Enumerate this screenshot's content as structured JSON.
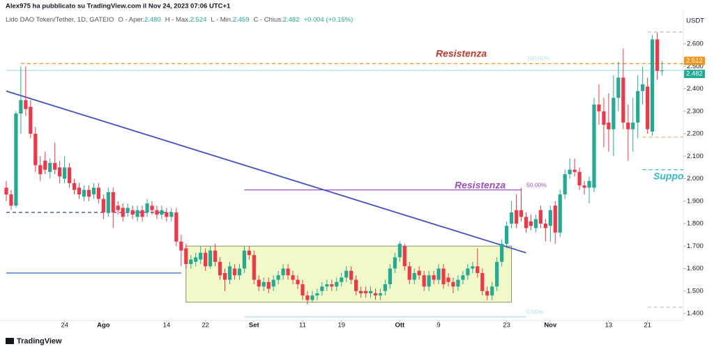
{
  "header": {
    "publisher": "Alex975 ha pubblicato su TradingView.com il Nov 24, 2023 07:06 UTC+1",
    "legend": [
      "Lido DAO Token/Tether, 1D, GATEIO",
      "O - Aper.",
      "2.480",
      "H - Max.",
      "2.524",
      "L - Min.",
      "2.459",
      "C - Chius.",
      "2.482",
      "+0.004 (+0.15%)"
    ]
  },
  "chart_data": {
    "type": "candlestick",
    "currency": "USDT",
    "up_color": "#22ab94",
    "down_color": "#f23645",
    "categories": [
      "2023-07-12",
      "2023-07-13",
      "2023-07-14",
      "2023-07-15",
      "2023-07-16",
      "2023-07-17",
      "2023-07-18",
      "2023-07-19",
      "2023-07-20",
      "2023-07-21",
      "2023-07-22",
      "2023-07-23",
      "2023-07-24",
      "2023-07-25",
      "2023-07-26",
      "2023-07-27",
      "2023-07-28",
      "2023-07-29",
      "2023-07-30",
      "2023-07-31",
      "2023-08-01",
      "2023-08-02",
      "2023-08-03",
      "2023-08-04",
      "2023-08-05",
      "2023-08-06",
      "2023-08-07",
      "2023-08-08",
      "2023-08-09",
      "2023-08-10",
      "2023-08-11",
      "2023-08-12",
      "2023-08-13",
      "2023-08-14",
      "2023-08-15",
      "2023-08-16",
      "2023-08-17",
      "2023-08-18",
      "2023-08-19",
      "2023-08-20",
      "2023-08-21",
      "2023-08-22",
      "2023-08-23",
      "2023-08-24",
      "2023-08-25",
      "2023-08-26",
      "2023-08-27",
      "2023-08-28",
      "2023-08-29",
      "2023-08-30",
      "2023-08-31",
      "2023-09-01",
      "2023-09-02",
      "2023-09-03",
      "2023-09-04",
      "2023-09-05",
      "2023-09-06",
      "2023-09-07",
      "2023-09-08",
      "2023-09-09",
      "2023-09-10",
      "2023-09-11",
      "2023-09-12",
      "2023-09-13",
      "2023-09-14",
      "2023-09-15",
      "2023-09-16",
      "2023-09-17",
      "2023-09-18",
      "2023-09-19",
      "2023-09-20",
      "2023-09-21",
      "2023-09-22",
      "2023-09-23",
      "2023-09-24",
      "2023-09-25",
      "2023-09-26",
      "2023-09-27",
      "2023-09-28",
      "2023-09-29",
      "2023-09-30",
      "2023-10-01",
      "2023-10-02",
      "2023-10-03",
      "2023-10-04",
      "2023-10-05",
      "2023-10-06",
      "2023-10-07",
      "2023-10-08",
      "2023-10-09",
      "2023-10-10",
      "2023-10-11",
      "2023-10-12",
      "2023-10-13",
      "2023-10-14",
      "2023-10-15",
      "2023-10-16",
      "2023-10-17",
      "2023-10-18",
      "2023-10-19",
      "2023-10-20",
      "2023-10-21",
      "2023-10-22",
      "2023-10-23",
      "2023-10-24",
      "2023-10-25",
      "2023-10-26",
      "2023-10-27",
      "2023-10-28",
      "2023-10-29",
      "2023-10-30",
      "2023-10-31",
      "2023-11-01",
      "2023-11-02",
      "2023-11-03",
      "2023-11-04",
      "2023-11-05",
      "2023-11-06",
      "2023-11-07",
      "2023-11-08",
      "2023-11-09",
      "2023-11-10",
      "2023-11-11",
      "2023-11-12",
      "2023-11-13",
      "2023-11-14",
      "2023-11-15",
      "2023-11-16",
      "2023-11-17",
      "2023-11-18",
      "2023-11-19",
      "2023-11-20",
      "2023-11-21",
      "2023-11-22",
      "2023-11-23",
      "2023-11-24"
    ],
    "ohlc": [
      [
        1.96,
        1.99,
        1.9,
        1.93
      ],
      [
        1.93,
        1.95,
        1.86,
        1.88
      ],
      [
        1.88,
        2.3,
        1.87,
        2.29
      ],
      [
        2.29,
        2.5,
        2.2,
        2.35
      ],
      [
        2.35,
        2.5,
        2.28,
        2.31
      ],
      [
        2.32,
        2.35,
        2.18,
        2.2
      ],
      [
        2.2,
        2.23,
        2.03,
        2.06
      ],
      [
        2.06,
        2.1,
        1.99,
        2.02
      ],
      [
        2.08,
        2.12,
        2.02,
        2.04
      ],
      [
        2.03,
        2.09,
        2.0,
        2.07
      ],
      [
        2.07,
        2.16,
        2.02,
        2.04
      ],
      [
        2.05,
        2.08,
        1.98,
        2.01
      ],
      [
        2.0,
        2.1,
        1.98,
        2.05
      ],
      [
        2.05,
        2.07,
        1.96,
        1.98
      ],
      [
        1.98,
        2.0,
        1.93,
        1.95
      ],
      [
        1.96,
        1.98,
        1.91,
        1.93
      ],
      [
        1.92,
        1.97,
        1.9,
        1.95
      ],
      [
        1.95,
        1.97,
        1.9,
        1.92
      ],
      [
        1.93,
        1.98,
        1.91,
        1.96
      ],
      [
        1.96,
        1.98,
        1.89,
        1.91
      ],
      [
        1.91,
        1.93,
        1.82,
        1.85
      ],
      [
        1.85,
        1.96,
        1.83,
        1.94
      ],
      [
        1.94,
        1.96,
        1.78,
        1.85
      ],
      [
        1.88,
        1.9,
        1.84,
        1.86
      ],
      [
        1.87,
        1.89,
        1.81,
        1.83
      ],
      [
        1.85,
        1.89,
        1.83,
        1.87
      ],
      [
        1.86,
        1.88,
        1.82,
        1.84
      ],
      [
        1.83,
        1.88,
        1.81,
        1.86
      ],
      [
        1.86,
        1.88,
        1.81,
        1.83
      ],
      [
        1.85,
        1.91,
        1.83,
        1.89
      ],
      [
        1.88,
        1.9,
        1.84,
        1.86
      ],
      [
        1.86,
        1.88,
        1.82,
        1.84
      ],
      [
        1.84,
        1.88,
        1.82,
        1.86
      ],
      [
        1.85,
        1.87,
        1.81,
        1.83
      ],
      [
        1.83,
        1.87,
        1.81,
        1.85
      ],
      [
        1.85,
        1.87,
        1.7,
        1.72
      ],
      [
        1.72,
        1.75,
        1.61,
        1.68
      ],
      [
        1.69,
        1.71,
        1.6,
        1.62
      ],
      [
        1.62,
        1.66,
        1.6,
        1.64
      ],
      [
        1.63,
        1.67,
        1.61,
        1.65
      ],
      [
        1.64,
        1.7,
        1.62,
        1.67
      ],
      [
        1.67,
        1.69,
        1.59,
        1.61
      ],
      [
        1.61,
        1.7,
        1.6,
        1.68
      ],
      [
        1.68,
        1.71,
        1.61,
        1.63
      ],
      [
        1.63,
        1.65,
        1.55,
        1.57
      ],
      [
        1.58,
        1.6,
        1.5,
        1.55
      ],
      [
        1.55,
        1.63,
        1.53,
        1.61
      ],
      [
        1.6,
        1.62,
        1.55,
        1.57
      ],
      [
        1.57,
        1.62,
        1.55,
        1.6
      ],
      [
        1.6,
        1.7,
        1.58,
        1.68
      ],
      [
        1.68,
        1.7,
        1.64,
        1.66
      ],
      [
        1.66,
        1.68,
        1.53,
        1.55
      ],
      [
        1.55,
        1.57,
        1.5,
        1.52
      ],
      [
        1.52,
        1.56,
        1.5,
        1.54
      ],
      [
        1.54,
        1.56,
        1.49,
        1.51
      ],
      [
        1.52,
        1.57,
        1.5,
        1.55
      ],
      [
        1.55,
        1.59,
        1.53,
        1.57
      ],
      [
        1.57,
        1.62,
        1.55,
        1.6
      ],
      [
        1.6,
        1.62,
        1.55,
        1.57
      ],
      [
        1.57,
        1.59,
        1.53,
        1.55
      ],
      [
        1.55,
        1.57,
        1.51,
        1.53
      ],
      [
        1.53,
        1.55,
        1.46,
        1.48
      ],
      [
        1.48,
        1.5,
        1.44,
        1.46
      ],
      [
        1.46,
        1.5,
        1.45,
        1.48
      ],
      [
        1.48,
        1.51,
        1.46,
        1.49
      ],
      [
        1.5,
        1.54,
        1.48,
        1.52
      ],
      [
        1.52,
        1.55,
        1.5,
        1.53
      ],
      [
        1.53,
        1.55,
        1.5,
        1.52
      ],
      [
        1.52,
        1.56,
        1.5,
        1.54
      ],
      [
        1.54,
        1.58,
        1.52,
        1.56
      ],
      [
        1.56,
        1.61,
        1.54,
        1.59
      ],
      [
        1.59,
        1.61,
        1.53,
        1.55
      ],
      [
        1.55,
        1.57,
        1.48,
        1.5
      ],
      [
        1.5,
        1.52,
        1.47,
        1.49
      ],
      [
        1.5,
        1.52,
        1.47,
        1.49
      ],
      [
        1.49,
        1.52,
        1.47,
        1.5
      ],
      [
        1.49,
        1.51,
        1.46,
        1.48
      ],
      [
        1.48,
        1.51,
        1.46,
        1.49
      ],
      [
        1.5,
        1.55,
        1.48,
        1.53
      ],
      [
        1.53,
        1.62,
        1.51,
        1.6
      ],
      [
        1.6,
        1.67,
        1.58,
        1.65
      ],
      [
        1.65,
        1.72,
        1.63,
        1.71
      ],
      [
        1.7,
        1.71,
        1.59,
        1.61
      ],
      [
        1.61,
        1.63,
        1.53,
        1.55
      ],
      [
        1.55,
        1.6,
        1.53,
        1.58
      ],
      [
        1.59,
        1.61,
        1.55,
        1.57
      ],
      [
        1.57,
        1.59,
        1.5,
        1.52
      ],
      [
        1.52,
        1.59,
        1.5,
        1.57
      ],
      [
        1.57,
        1.59,
        1.53,
        1.55
      ],
      [
        1.55,
        1.62,
        1.53,
        1.6
      ],
      [
        1.6,
        1.62,
        1.51,
        1.53
      ],
      [
        1.56,
        1.58,
        1.52,
        1.54
      ],
      [
        1.54,
        1.56,
        1.49,
        1.52
      ],
      [
        1.52,
        1.57,
        1.5,
        1.55
      ],
      [
        1.55,
        1.59,
        1.53,
        1.57
      ],
      [
        1.57,
        1.62,
        1.55,
        1.6
      ],
      [
        1.6,
        1.63,
        1.58,
        1.61
      ],
      [
        1.61,
        1.69,
        1.56,
        1.58
      ],
      [
        1.58,
        1.6,
        1.48,
        1.5
      ],
      [
        1.5,
        1.52,
        1.46,
        1.48
      ],
      [
        1.48,
        1.54,
        1.46,
        1.52
      ],
      [
        1.52,
        1.65,
        1.5,
        1.63
      ],
      [
        1.63,
        1.73,
        1.61,
        1.71
      ],
      [
        1.71,
        1.81,
        1.69,
        1.79
      ],
      [
        1.8,
        1.9,
        1.78,
        1.85
      ],
      [
        1.86,
        1.93,
        1.78,
        1.8
      ],
      [
        1.86,
        1.96,
        1.81,
        1.83
      ],
      [
        1.83,
        1.85,
        1.76,
        1.78
      ],
      [
        1.81,
        1.84,
        1.77,
        1.79
      ],
      [
        1.78,
        1.84,
        1.76,
        1.82
      ],
      [
        1.86,
        1.88,
        1.78,
        1.8
      ],
      [
        1.8,
        1.82,
        1.72,
        1.78
      ],
      [
        1.79,
        1.88,
        1.72,
        1.86
      ],
      [
        1.88,
        1.9,
        1.71,
        1.76
      ],
      [
        1.76,
        1.95,
        1.74,
        1.93
      ],
      [
        1.93,
        2.04,
        1.91,
        2.02
      ],
      [
        2.02,
        2.09,
        2.0,
        2.04
      ],
      [
        2.04,
        2.09,
        2.01,
        2.03
      ],
      [
        2.03,
        2.05,
        1.95,
        1.97
      ],
      [
        1.97,
        1.99,
        1.93,
        1.96
      ],
      [
        1.96,
        2.01,
        1.89,
        1.99
      ],
      [
        1.96,
        2.36,
        1.94,
        2.33
      ],
      [
        2.33,
        2.42,
        2.24,
        2.3
      ],
      [
        2.3,
        2.36,
        2.14,
        2.24
      ],
      [
        2.25,
        2.38,
        2.12,
        2.22
      ],
      [
        2.22,
        2.46,
        2.1,
        2.36
      ],
      [
        2.36,
        2.52,
        2.3,
        2.45
      ],
      [
        2.45,
        2.58,
        2.22,
        2.25
      ],
      [
        2.25,
        2.33,
        2.08,
        2.22
      ],
      [
        2.22,
        2.36,
        2.12,
        2.25
      ],
      [
        2.25,
        2.46,
        2.18,
        2.39
      ],
      [
        2.39,
        2.5,
        2.33,
        2.42
      ],
      [
        2.41,
        2.45,
        2.2,
        2.22
      ],
      [
        2.21,
        2.64,
        2.19,
        2.62
      ],
      [
        2.62,
        2.65,
        2.44,
        2.48
      ],
      [
        2.48,
        2.524,
        2.459,
        2.482
      ]
    ],
    "ylim": [
      1.369,
      2.752
    ],
    "yticks": [
      {
        "value": 2.6,
        "label": "2.600"
      },
      {
        "value": 2.5,
        "label": "2.500"
      },
      {
        "value": 2.4,
        "label": "2.400"
      },
      {
        "value": 2.3,
        "label": "2.300"
      },
      {
        "value": 2.2,
        "label": "2.200"
      },
      {
        "value": 2.1,
        "label": "2.100"
      },
      {
        "value": 2.0,
        "label": "2.000"
      },
      {
        "value": 1.9,
        "label": "1.900"
      },
      {
        "value": 1.8,
        "label": "1.800"
      },
      {
        "value": 1.7,
        "label": "1.700"
      },
      {
        "value": 1.6,
        "label": "1.600"
      },
      {
        "value": 1.5,
        "label": "1.500"
      },
      {
        "value": 1.4,
        "label": "1.400"
      }
    ],
    "xticks": [
      {
        "value": "2023-07-24",
        "label": "24"
      },
      {
        "value": "2023-08-01",
        "label": "Ago"
      },
      {
        "value": "2023-08-14",
        "label": "14"
      },
      {
        "value": "2023-08-22",
        "label": "22"
      },
      {
        "value": "2023-09-01",
        "label": "Set"
      },
      {
        "value": "2023-09-11",
        "label": "11"
      },
      {
        "value": "2023-09-19",
        "label": "19"
      },
      {
        "value": "2023-10-01",
        "label": "Ott"
      },
      {
        "value": "2023-10-09",
        "label": "9"
      },
      {
        "value": "2023-10-23",
        "label": "23"
      },
      {
        "value": "2023-11-01",
        "label": "Nov"
      },
      {
        "value": "2023-11-13",
        "label": "13"
      },
      {
        "value": "2023-11-21",
        "label": "21"
      }
    ],
    "hlines": [
      {
        "price": 2.512,
        "from": "2023-07-15",
        "extend_right": true,
        "color": "#f7931a",
        "dash": true
      },
      {
        "price": 2.482,
        "from": "2023-07-12",
        "extend_right": true,
        "color": "#b2e6e0",
        "dash": false
      },
      {
        "price": 1.85,
        "from": "2023-07-12",
        "to": "2023-08-15",
        "color": "#2a3f8f",
        "dash": true
      },
      {
        "price": 1.58,
        "from": "2023-07-12",
        "to": "2023-08-17",
        "color": "#3a6fd8",
        "dash": false
      },
      {
        "price": 1.95,
        "from": "2023-08-30",
        "to": "2023-10-26",
        "color": "#9c4fc4",
        "dash": false
      },
      {
        "price": 1.385,
        "from": "2023-08-30",
        "to": "2023-10-27",
        "color": "#a8dde8",
        "dash": false
      },
      {
        "price": 2.185,
        "from": "2023-11-20",
        "extend_right": true,
        "color": "#f7b36a",
        "dash": true
      },
      {
        "price": 2.04,
        "from": "2023-11-20",
        "extend_right": true,
        "color": "#35b8cc",
        "dash": true
      },
      {
        "price": 2.653,
        "from": "2023-11-21",
        "extend_right": true,
        "color": "#c0c0c0",
        "dash": true
      },
      {
        "price": 1.428,
        "from": "2023-11-21",
        "extend_right": true,
        "color": "#c0c0c0",
        "dash": true
      }
    ],
    "trendline": {
      "from": [
        "2023-07-12",
        2.39
      ],
      "to": [
        "2023-10-27",
        1.67
      ],
      "color": "#3d4fc4"
    },
    "box": {
      "from": "2023-08-18",
      "to": "2023-10-24",
      "top": 1.7,
      "bottom": 1.45,
      "fill": "#f1f9c9",
      "stroke": "#8a8f6a"
    }
  },
  "annotations": {
    "resistance_top": "Resistenza",
    "resistance_mid": "Resistenza",
    "support": "Suppo",
    "fib_100": "100.00%",
    "fib_50": "50.00%",
    "fib_0": "0.00%"
  },
  "logo": "TradingView"
}
